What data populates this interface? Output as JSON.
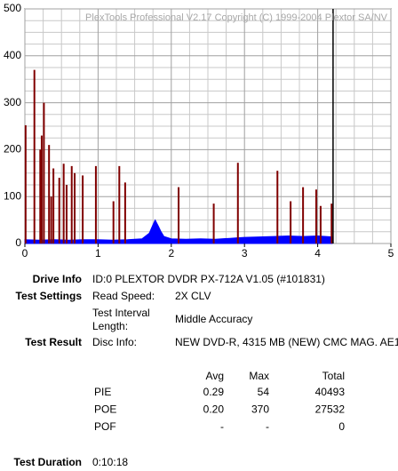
{
  "chart_data": {
    "type": "bar",
    "title": "PlexTools Professional V2.17 Copyright (C) 1999-2004 Plextor SA/NV",
    "xlim": [
      0,
      5
    ],
    "xticks": [
      0,
      1,
      2,
      3,
      4,
      5
    ],
    "ylim": [
      0,
      500
    ],
    "yticks": [
      0,
      100,
      200,
      300,
      400,
      500
    ],
    "grid": true,
    "marker_x": 4.21,
    "marker_color": "#000000",
    "series": [
      {
        "kind": "area",
        "color": "#0000ff",
        "x": [
          0,
          0.2,
          0.4,
          0.6,
          0.8,
          1.0,
          1.2,
          1.4,
          1.5,
          1.6,
          1.7,
          1.75,
          1.78,
          1.82,
          1.86,
          1.9,
          2.0,
          2.2,
          2.4,
          2.6,
          2.8,
          2.9,
          3.0,
          3.2,
          3.4,
          3.6,
          3.8,
          4.0,
          4.2
        ],
        "values": [
          8,
          7,
          8,
          7,
          8,
          8,
          7,
          8,
          9,
          10,
          22,
          40,
          50,
          38,
          25,
          15,
          10,
          9,
          10,
          9,
          11,
          12,
          13,
          14,
          15,
          16,
          15,
          16,
          14
        ]
      },
      {
        "kind": "spikes",
        "color": "#800000",
        "x": [
          0.01,
          0.13,
          0.21,
          0.23,
          0.26,
          0.33,
          0.36,
          0.39,
          0.47,
          0.53,
          0.57,
          0.64,
          0.68,
          0.79,
          0.97,
          1.21,
          1.29,
          1.37,
          2.1,
          2.58,
          2.91,
          3.45,
          3.63,
          3.8,
          3.98,
          4.04,
          4.19
        ],
        "values": [
          252,
          370,
          200,
          230,
          300,
          210,
          100,
          160,
          140,
          170,
          125,
          165,
          150,
          145,
          165,
          90,
          165,
          130,
          120,
          85,
          172,
          155,
          90,
          120,
          115,
          80,
          85
        ]
      }
    ]
  },
  "info": {
    "drive_info": {
      "label": "Drive Info",
      "value": "ID:0 PLEXTOR DVDR PX-712A V1.05 (#101831)"
    },
    "test_settings": {
      "label": "Test Settings",
      "read_speed_label": "Read Speed:",
      "read_speed": "2X CLV",
      "interval_label_1": "Test Interval",
      "interval_label_2": "Length:",
      "interval": "Middle Accuracy"
    },
    "test_result": {
      "label": "Test Result",
      "disc_info_label": "Disc Info:",
      "disc_info": "NEW DVD-R, 4315 MB (NEW) CMC MAG. AE1"
    },
    "table": {
      "header": [
        "Avg",
        "Max",
        "Total"
      ],
      "rows": [
        [
          "PIE",
          "0.29",
          "54",
          "40493"
        ],
        [
          "POE",
          "0.20",
          "370",
          "27532"
        ],
        [
          "POF",
          "-",
          "-",
          "0"
        ]
      ]
    },
    "test_duration": {
      "label": "Test Duration",
      "value": "0:10:18"
    }
  }
}
